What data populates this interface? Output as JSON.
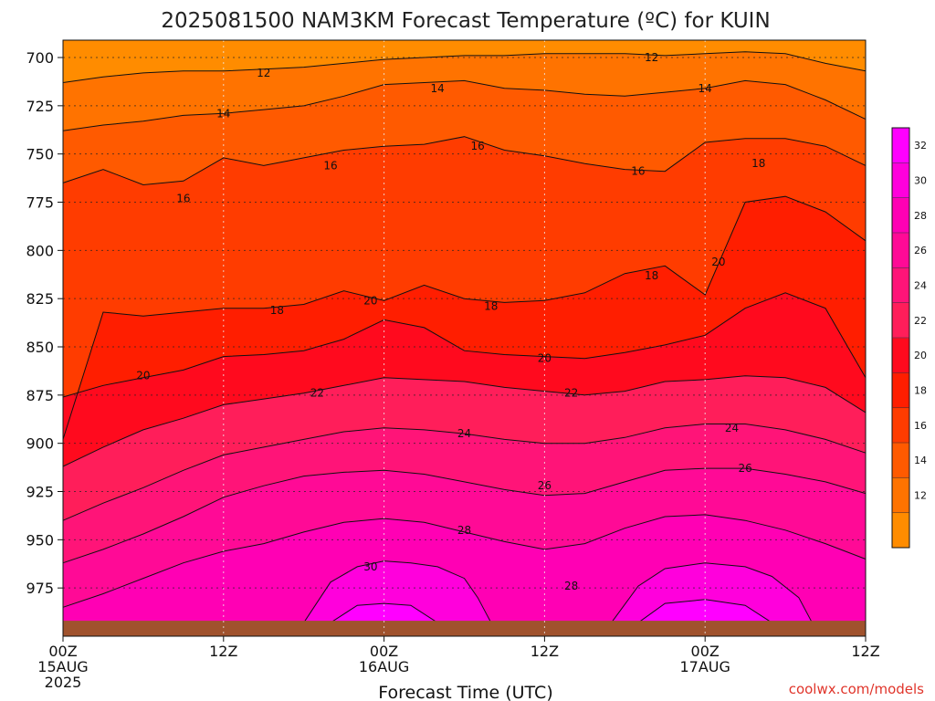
{
  "chart_data": {
    "type": "heatmap",
    "title": "2025081500 NAM3KM Forecast Temperature (ºC) for KUIN",
    "xlabel": "Forecast Time (UTC)",
    "ylabel": "",
    "credit": "coolwx.com/models",
    "x_ticks": [
      {
        "label": "00Z",
        "sub": "15AUG",
        "year": "2025",
        "hour": 0
      },
      {
        "label": "12Z",
        "sub": "",
        "year": "",
        "hour": 12
      },
      {
        "label": "00Z",
        "sub": "16AUG",
        "year": "",
        "hour": 24
      },
      {
        "label": "12Z",
        "sub": "",
        "year": "",
        "hour": 36
      },
      {
        "label": "00Z",
        "sub": "17AUG",
        "year": "",
        "hour": 48
      },
      {
        "label": "12Z",
        "sub": "",
        "year": "",
        "hour": 60
      }
    ],
    "y_ticks": [
      "700",
      "725",
      "750",
      "775",
      "800",
      "825",
      "850",
      "875",
      "900",
      "925",
      "950",
      "975"
    ],
    "x_range_hours": [
      0,
      60
    ],
    "y_range_hpa": [
      691,
      1000
    ],
    "y_reversed": true,
    "surface_hpa": 992,
    "colorbar": {
      "levels": [
        10,
        12,
        14,
        16,
        18,
        20,
        22,
        24,
        26,
        28,
        30,
        32,
        34
      ],
      "labels": [
        "12",
        "14",
        "16",
        "18",
        "20",
        "22",
        "24",
        "26",
        "28",
        "30",
        "32"
      ],
      "colors": [
        "#ff8c00",
        "#ff7300",
        "#ff5a00",
        "#ff3c00",
        "#ff1e00",
        "#ff0a1e",
        "#ff1e5a",
        "#ff1478",
        "#ff0a96",
        "#ff00b4",
        "#ff00dc",
        "#ff00ff"
      ]
    },
    "surface_color": "#a0522d",
    "grid": true,
    "contours": [
      {
        "level": 12,
        "hours": [
          0,
          3,
          6,
          9,
          12,
          15,
          18,
          21,
          24,
          27,
          30,
          33,
          36,
          39,
          42,
          45,
          48,
          51,
          54,
          57,
          60
        ],
        "pressure": [
          713,
          710,
          708,
          707,
          707,
          706,
          705,
          703,
          701,
          700,
          699,
          699,
          698,
          698,
          698,
          699,
          698,
          697,
          698,
          703,
          707
        ]
      },
      {
        "level": 14,
        "hours": [
          0,
          3,
          6,
          9,
          12,
          15,
          18,
          21,
          24,
          27,
          30,
          33,
          36,
          39,
          42,
          45,
          48,
          51,
          54,
          57,
          60
        ],
        "pressure": [
          738,
          735,
          733,
          730,
          729,
          727,
          725,
          720,
          714,
          713,
          712,
          716,
          717,
          719,
          720,
          718,
          716,
          712,
          714,
          722,
          732
        ]
      },
      {
        "level": 16,
        "hours": [
          0,
          3,
          6,
          9,
          12,
          15,
          18,
          21,
          24,
          27,
          30,
          33,
          36,
          39,
          42,
          45,
          48,
          51,
          54,
          57,
          60
        ],
        "pressure": [
          765,
          758,
          766,
          764,
          752,
          756,
          752,
          748,
          746,
          745,
          741,
          748,
          751,
          755,
          758,
          759,
          744,
          742,
          742,
          746,
          756
        ]
      },
      {
        "level": 18,
        "hours": [
          0,
          3,
          6,
          9,
          12,
          15,
          18,
          21,
          24,
          27,
          30,
          33,
          36,
          39,
          42,
          45,
          48,
          51,
          54,
          57,
          60
        ],
        "pressure": [
          898,
          832,
          834,
          832,
          830,
          830,
          828,
          821,
          826,
          818,
          825,
          827,
          826,
          822,
          812,
          808,
          823,
          775,
          772,
          780,
          795
        ]
      },
      {
        "level": 20,
        "hours": [
          0,
          3,
          6,
          9,
          12,
          15,
          18,
          21,
          24,
          27,
          30,
          33,
          36,
          39,
          42,
          45,
          48,
          51,
          54,
          57,
          60
        ],
        "pressure": [
          876,
          870,
          866,
          862,
          855,
          854,
          852,
          846,
          836,
          840,
          852,
          854,
          855,
          856,
          853,
          849,
          844,
          830,
          822,
          830,
          866
        ]
      },
      {
        "level": 22,
        "hours": [
          0,
          3,
          6,
          9,
          12,
          15,
          18,
          21,
          24,
          27,
          30,
          33,
          36,
          39,
          42,
          45,
          48,
          51,
          54,
          57,
          60
        ],
        "pressure": [
          912,
          902,
          893,
          887,
          880,
          877,
          874,
          870,
          866,
          867,
          868,
          871,
          873,
          875,
          873,
          868,
          867,
          865,
          866,
          871,
          884
        ]
      },
      {
        "level": 24,
        "hours": [
          0,
          3,
          6,
          9,
          12,
          15,
          18,
          21,
          24,
          27,
          30,
          33,
          36,
          39,
          42,
          45,
          48,
          51,
          54,
          57,
          60
        ],
        "pressure": [
          940,
          931,
          923,
          914,
          906,
          902,
          898,
          894,
          892,
          893,
          895,
          898,
          900,
          900,
          897,
          892,
          890,
          890,
          893,
          898,
          905
        ]
      },
      {
        "level": 26,
        "hours": [
          0,
          3,
          6,
          9,
          12,
          15,
          18,
          21,
          24,
          27,
          30,
          33,
          36,
          39,
          42,
          45,
          48,
          51,
          54,
          57,
          60
        ],
        "pressure": [
          962,
          955,
          947,
          938,
          928,
          922,
          917,
          915,
          914,
          916,
          920,
          924,
          927,
          926,
          920,
          914,
          913,
          913,
          916,
          920,
          926
        ]
      },
      {
        "level": 28,
        "hours": [
          0,
          3,
          6,
          9,
          12,
          15,
          18,
          21,
          24,
          27,
          30,
          33,
          36,
          39,
          42,
          45,
          48,
          51,
          54,
          57,
          60
        ],
        "pressure": [
          985,
          978,
          970,
          962,
          956,
          952,
          946,
          941,
          939,
          941,
          946,
          951,
          955,
          952,
          944,
          938,
          937,
          940,
          945,
          952,
          960
        ]
      },
      {
        "level": 30,
        "hours": [
          18,
          20,
          22,
          24,
          26,
          28,
          30,
          31,
          32
        ],
        "pressure": [
          993,
          972,
          964,
          961,
          962,
          964,
          970,
          980,
          993
        ]
      },
      {
        "level": 30,
        "hours": [
          41,
          43,
          45,
          48,
          51,
          53,
          55,
          56
        ],
        "pressure": [
          993,
          974,
          965,
          962,
          964,
          969,
          980,
          993
        ]
      },
      {
        "level": 32,
        "hours": [
          20,
          22,
          24,
          26,
          28
        ],
        "pressure": [
          993,
          984,
          983,
          984,
          993
        ]
      },
      {
        "level": 32,
        "hours": [
          43,
          45,
          48,
          51,
          53
        ],
        "pressure": [
          993,
          983,
          981,
          984,
          993
        ]
      }
    ],
    "contour_labels": [
      {
        "text": "12",
        "hour": 15,
        "hpa": 708
      },
      {
        "text": "12",
        "hour": 44,
        "hpa": 700
      },
      {
        "text": "14",
        "hour": 12,
        "hpa": 729
      },
      {
        "text": "14",
        "hour": 28,
        "hpa": 716
      },
      {
        "text": "14",
        "hour": 48,
        "hpa": 716
      },
      {
        "text": "16",
        "hour": 9,
        "hpa": 773
      },
      {
        "text": "16",
        "hour": 20,
        "hpa": 756
      },
      {
        "text": "16",
        "hour": 31,
        "hpa": 746
      },
      {
        "text": "16",
        "hour": 43,
        "hpa": 759
      },
      {
        "text": "18",
        "hour": 16,
        "hpa": 831
      },
      {
        "text": "18",
        "hour": 32,
        "hpa": 829
      },
      {
        "text": "18",
        "hour": 44,
        "hpa": 813
      },
      {
        "text": "18",
        "hour": 52,
        "hpa": 755
      },
      {
        "text": "20",
        "hour": 6,
        "hpa": 865
      },
      {
        "text": "20",
        "hour": 23,
        "hpa": 826
      },
      {
        "text": "20",
        "hour": 36,
        "hpa": 856
      },
      {
        "text": "20",
        "hour": 49,
        "hpa": 806
      },
      {
        "text": "22",
        "hour": 19,
        "hpa": 874
      },
      {
        "text": "22",
        "hour": 38,
        "hpa": 874
      },
      {
        "text": "24",
        "hour": 30,
        "hpa": 895
      },
      {
        "text": "24",
        "hour": 50,
        "hpa": 892
      },
      {
        "text": "26",
        "hour": 36,
        "hpa": 922
      },
      {
        "text": "26",
        "hour": 51,
        "hpa": 913
      },
      {
        "text": "28",
        "hour": 30,
        "hpa": 945
      },
      {
        "text": "28",
        "hour": 38,
        "hpa": 974
      },
      {
        "text": "30",
        "hour": 23,
        "hpa": 964
      }
    ]
  }
}
